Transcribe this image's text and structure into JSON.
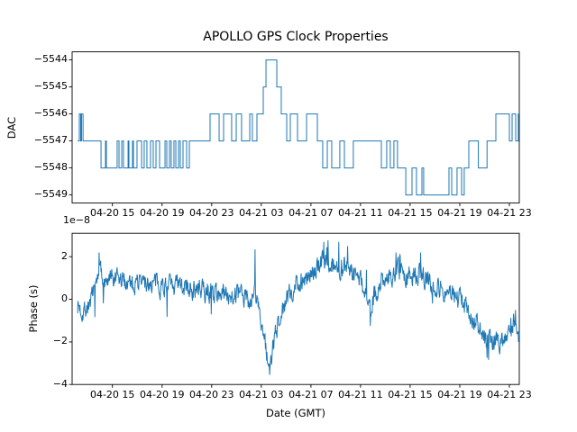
{
  "figure": {
    "title": "APOLLO GPS Clock Properties",
    "background_color": "#ffffff",
    "text_color": "#000000"
  },
  "colors": {
    "line": "#1f77b4",
    "spine": "#000000"
  },
  "top_chart": {
    "ylabel": "DAC"
  },
  "bottom_chart": {
    "ylabel": "Phase (s)",
    "xlabel": "Date (GMT)",
    "offset_text": "1e−8"
  },
  "chart_data": [
    {
      "type": "line",
      "subtype": "step",
      "title": "DAC vs time",
      "ylabel": "DAC",
      "line_color": "#1f77b4",
      "grid": false,
      "legend": "none",
      "xlim": [
        0,
        36.05
      ],
      "ylim": [
        -5549.3,
        -5543.7
      ],
      "xtick_hours": [
        3.25,
        7.25,
        11.25,
        15.25,
        19.25,
        23.25,
        27.25,
        31.25,
        35.25
      ],
      "xtick_labels": [
        "04-20 15",
        "04-20 19",
        "04-20 23",
        "04-21 03",
        "04-21 07",
        "04-21 11",
        "04-21 15",
        "04-21 19",
        "04-21 23"
      ],
      "ytick_values": [
        -5544,
        -5545,
        -5546,
        -5547,
        -5548,
        -5549
      ],
      "ytick_labels": [
        "−5544",
        "−5545",
        "−5546",
        "−5547",
        "−5548",
        "−5549"
      ],
      "steps": [
        [
          0.44,
          -5547
        ],
        [
          0.58,
          -5546
        ],
        [
          0.69,
          -5547
        ],
        [
          0.76,
          -5546
        ],
        [
          0.88,
          -5547
        ],
        [
          2.33,
          -5548
        ],
        [
          2.69,
          -5547
        ],
        [
          2.76,
          -5548
        ],
        [
          3.63,
          -5547
        ],
        [
          3.78,
          -5548
        ],
        [
          4.0,
          -5547
        ],
        [
          4.14,
          -5548
        ],
        [
          4.51,
          -5547
        ],
        [
          4.58,
          -5548
        ],
        [
          4.87,
          -5547
        ],
        [
          4.94,
          -5548
        ],
        [
          5.23,
          -5547
        ],
        [
          5.6,
          -5548
        ],
        [
          5.81,
          -5547
        ],
        [
          6.03,
          -5548
        ],
        [
          6.32,
          -5547
        ],
        [
          6.54,
          -5548
        ],
        [
          6.76,
          -5547
        ],
        [
          7.05,
          -5548
        ],
        [
          7.49,
          -5547
        ],
        [
          7.63,
          -5548
        ],
        [
          7.85,
          -5547
        ],
        [
          7.99,
          -5548
        ],
        [
          8.21,
          -5547
        ],
        [
          8.36,
          -5548
        ],
        [
          8.58,
          -5547
        ],
        [
          8.72,
          -5548
        ],
        [
          8.94,
          -5547
        ],
        [
          9.23,
          -5548
        ],
        [
          9.45,
          -5547
        ],
        [
          11.12,
          -5546
        ],
        [
          11.85,
          -5547
        ],
        [
          12.21,
          -5546
        ],
        [
          12.86,
          -5547
        ],
        [
          13.23,
          -5546
        ],
        [
          13.66,
          -5547
        ],
        [
          14.32,
          -5546
        ],
        [
          14.53,
          -5547
        ],
        [
          14.9,
          -5546
        ],
        [
          15.41,
          -5545
        ],
        [
          15.63,
          -5544
        ],
        [
          16.5,
          -5545
        ],
        [
          16.86,
          -5546
        ],
        [
          17.3,
          -5547
        ],
        [
          17.59,
          -5546
        ],
        [
          18.17,
          -5547
        ],
        [
          18.9,
          -5546
        ],
        [
          19.77,
          -5547
        ],
        [
          20.2,
          -5548
        ],
        [
          20.57,
          -5547
        ],
        [
          20.93,
          -5548
        ],
        [
          21.58,
          -5547
        ],
        [
          21.95,
          -5548
        ],
        [
          22.67,
          -5547
        ],
        [
          24.93,
          -5548
        ],
        [
          25.36,
          -5547
        ],
        [
          25.65,
          -5548
        ],
        [
          25.94,
          -5547
        ],
        [
          26.23,
          -5548
        ],
        [
          26.9,
          -5549
        ],
        [
          27.4,
          -5548
        ],
        [
          27.76,
          -5549
        ],
        [
          28.2,
          -5548
        ],
        [
          28.34,
          -5549
        ],
        [
          30.38,
          -5548
        ],
        [
          30.6,
          -5549
        ],
        [
          31.03,
          -5548
        ],
        [
          31.4,
          -5549
        ],
        [
          31.61,
          -5548
        ],
        [
          31.98,
          -5547
        ],
        [
          32.75,
          -5548
        ],
        [
          33.45,
          -5547
        ],
        [
          34.16,
          -5546
        ],
        [
          35.25,
          -5547
        ],
        [
          35.47,
          -5546
        ],
        [
          35.76,
          -5547
        ],
        [
          35.97,
          -5546
        ]
      ]
    },
    {
      "type": "line",
      "subtype": "noisy",
      "title": "Phase vs time",
      "ylabel": "Phase (s)",
      "y_offset_text": "1e−8",
      "line_color": "#1f77b4",
      "grid": false,
      "legend": "none",
      "xlim": [
        0,
        36.05
      ],
      "ylim": [
        -4.0,
        3.1
      ],
      "xtick_hours": [
        3.25,
        7.25,
        11.25,
        15.25,
        19.25,
        23.25,
        27.25,
        31.25,
        35.25
      ],
      "xtick_labels": [
        "04-20 15",
        "04-20 19",
        "04-20 23",
        "04-21 03",
        "04-21 07",
        "04-21 11",
        "04-21 15",
        "04-21 19",
        "04-21 23"
      ],
      "ytick_values": [
        2,
        0,
        -2,
        -4
      ],
      "ytick_labels": [
        "2",
        "0",
        "−2",
        "−4"
      ],
      "keyframes": [
        [
          0.44,
          -0.25
        ],
        [
          0.8,
          -0.55
        ],
        [
          1.2,
          -0.35
        ],
        [
          1.7,
          0.1
        ],
        [
          2.0,
          0.8
        ],
        [
          2.18,
          1.6
        ],
        [
          2.45,
          1.0
        ],
        [
          2.9,
          0.8
        ],
        [
          4.5,
          0.85
        ],
        [
          6.5,
          0.75
        ],
        [
          8.7,
          0.55
        ],
        [
          10.9,
          0.35
        ],
        [
          13.0,
          0.25
        ],
        [
          14.4,
          0.0
        ],
        [
          14.75,
          0.3
        ],
        [
          15.1,
          -0.5
        ],
        [
          15.5,
          -2.0
        ],
        [
          15.9,
          -3.3
        ],
        [
          16.3,
          -1.9
        ],
        [
          16.8,
          -0.7
        ],
        [
          17.5,
          0.2
        ],
        [
          18.3,
          0.85
        ],
        [
          19.2,
          1.2
        ],
        [
          19.8,
          1.45
        ],
        [
          20.35,
          1.95
        ],
        [
          20.8,
          1.5
        ],
        [
          21.9,
          1.55
        ],
        [
          22.6,
          1.35
        ],
        [
          23.3,
          0.9
        ],
        [
          23.9,
          -0.2
        ],
        [
          24.05,
          -0.7
        ],
        [
          24.35,
          0.2
        ],
        [
          25.2,
          1.1
        ],
        [
          26.0,
          1.25
        ],
        [
          27.0,
          1.15
        ],
        [
          28.0,
          1.25
        ],
        [
          28.8,
          0.8
        ],
        [
          29.8,
          0.45
        ],
        [
          30.8,
          0.25
        ],
        [
          31.5,
          -0.15
        ],
        [
          32.3,
          -0.85
        ],
        [
          33.0,
          -1.5
        ],
        [
          33.4,
          -2.15
        ],
        [
          34.0,
          -1.85
        ],
        [
          34.6,
          -1.95
        ],
        [
          35.2,
          -1.35
        ],
        [
          35.6,
          -1.05
        ],
        [
          35.85,
          -1.55
        ],
        [
          36.05,
          -1.8
        ]
      ],
      "spikes": [
        [
          2.18,
          2.2
        ],
        [
          14.75,
          2.35
        ],
        [
          15.93,
          -3.55
        ],
        [
          20.3,
          2.7
        ],
        [
          20.55,
          2.45
        ],
        [
          22.2,
          2.5
        ],
        [
          24.05,
          -1.25
        ],
        [
          26.1,
          2.2
        ],
        [
          28.1,
          2.2
        ],
        [
          33.45,
          -2.75
        ],
        [
          35.75,
          -0.5
        ]
      ],
      "noise_amplitude": 0.42,
      "noise_ar": 0.5,
      "noise_seed": 7,
      "samples": 1150
    }
  ]
}
